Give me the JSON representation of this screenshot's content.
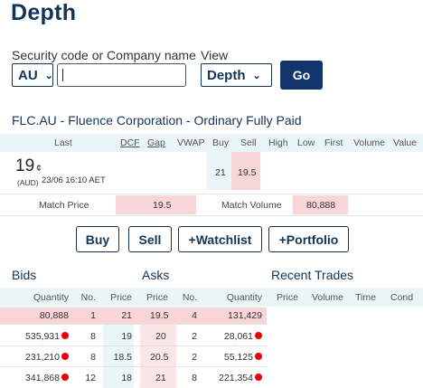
{
  "page": {
    "title": "Depth"
  },
  "search": {
    "security_label": "Security code or Company name",
    "market_value": "AU",
    "code_value": "",
    "view_label": "View",
    "view_value": "Depth",
    "go_label": "Go"
  },
  "security": {
    "title": "FLC.AU - Fluence Corporation - Ordinary Fully Paid",
    "headers": [
      "Last",
      "DCF",
      "Gap",
      "VWAP",
      "Buy",
      "Sell",
      "High",
      "Low",
      "First",
      "Volume",
      "Value"
    ],
    "last": "19",
    "last_unit": "¢",
    "currency": "(AUD)",
    "timestamp": "23/06 16:10 AET",
    "buy": "21",
    "sell": "19.5",
    "match_price_label": "Match Price",
    "match_price": "19.5",
    "match_volume_label": "Match Volume",
    "match_volume": "80,888"
  },
  "actions": {
    "buy": "Buy",
    "sell": "Sell",
    "watchlist": "+Watchlist",
    "portfolio": "+Portfolio"
  },
  "bids": {
    "title": "Bids",
    "headers": [
      "Quantity",
      "No.",
      "Price"
    ],
    "rows": [
      {
        "qty": "80,888",
        "no": "1",
        "price": "21"
      },
      {
        "qty": "535,931",
        "no": "8",
        "price": "19"
      },
      {
        "qty": "231,210",
        "no": "8",
        "price": "18.5"
      },
      {
        "qty": "341,868",
        "no": "12",
        "price": "18"
      }
    ]
  },
  "asks": {
    "title": "Asks",
    "headers": [
      "Price",
      "No.",
      "Quantity"
    ],
    "rows": [
      {
        "price": "19.5",
        "no": "4",
        "qty": "131,429"
      },
      {
        "price": "20",
        "no": "2",
        "qty": "28,061"
      },
      {
        "price": "20.5",
        "no": "2",
        "qty": "55,125"
      },
      {
        "price": "21",
        "no": "8",
        "qty": "221,354"
      }
    ]
  },
  "recent_trades": {
    "title": "Recent Trades",
    "headers": [
      "Price",
      "Volume",
      "Time",
      "Cond"
    ]
  },
  "icons": {
    "dropdown": "chevron-down-icon",
    "broker_dot": "red-dot-icon"
  },
  "colors": {
    "brand": "#123456",
    "go_button": "#12356b",
    "highlight_pink": "#f8d5d6",
    "header_blue": "#e9f5f7",
    "dot_red": "#e8000b"
  }
}
